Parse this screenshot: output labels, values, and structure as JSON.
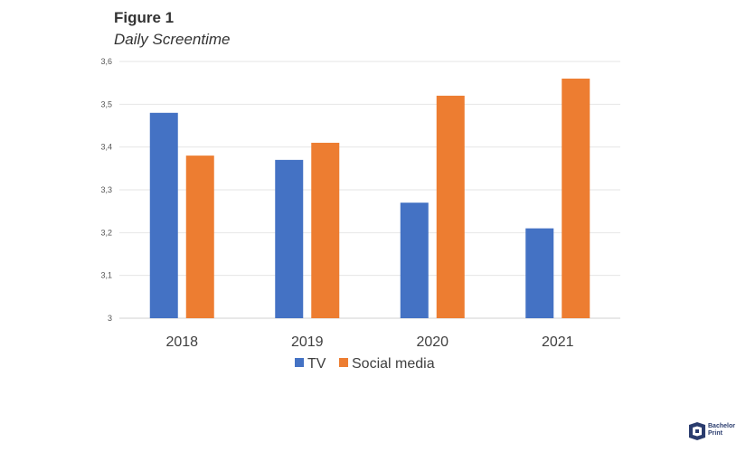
{
  "header": {
    "figure_label": "Figure 1",
    "figure_caption": "Daily Screentime"
  },
  "logo": {
    "icon": "bachelorprint-logo-icon",
    "line1": "Bachelor",
    "line2": "Print",
    "color": "#2a3c6e"
  },
  "chart_data": {
    "type": "bar",
    "title": "Figure 1",
    "subtitle": "Daily Screentime",
    "xlabel": "",
    "ylabel": "",
    "categories": [
      "2018",
      "2019",
      "2020",
      "2021"
    ],
    "series": [
      {
        "name": "TV",
        "values": [
          3.48,
          3.37,
          3.27,
          3.21
        ],
        "color": "#4472c4"
      },
      {
        "name": "Social media",
        "values": [
          3.38,
          3.41,
          3.52,
          3.56
        ],
        "color": "#ed7d31"
      }
    ],
    "ylim": [
      3,
      3.6
    ],
    "yticks": [
      3,
      3.1,
      3.2,
      3.3,
      3.4,
      3.5,
      3.6
    ],
    "ytick_labels": [
      "3",
      "3,1",
      "3,2",
      "3,3",
      "3,4",
      "3,5",
      "3,6"
    ],
    "grid": true,
    "legend_position": "bottom-center"
  }
}
